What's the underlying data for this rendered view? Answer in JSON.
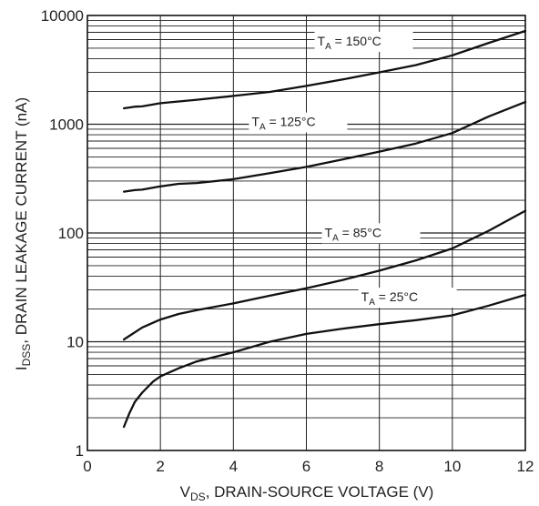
{
  "chart_data": {
    "type": "line",
    "xlabel": {
      "main": "V",
      "sub": "DS",
      "rest": ", DRAIN-SOURCE VOLTAGE (V)"
    },
    "ylabel": {
      "main": "I",
      "sub": "DSS",
      "rest": ", DRAIN LEAKAGE CURRENT (nA)"
    },
    "xlim": [
      0,
      12
    ],
    "ylim": [
      1,
      10000
    ],
    "yscale": "log",
    "grid": true,
    "x_ticks": [
      0,
      2,
      4,
      6,
      8,
      10,
      12
    ],
    "x_tick_labels": [
      "0",
      "2",
      "4",
      "6",
      "8",
      "10",
      "12"
    ],
    "y_ticks": [
      1,
      10,
      100,
      1000,
      10000
    ],
    "y_tick_labels": [
      "1",
      "10",
      "100",
      "1000",
      "10000"
    ],
    "series": [
      {
        "name": {
          "main": "T",
          "sub": "A",
          "rest": " = 150°C"
        },
        "x": [
          1.0,
          1.3,
          1.5,
          2.0,
          2.5,
          3.0,
          4.0,
          5.0,
          6.0,
          7.0,
          8.0,
          9.0,
          10.0,
          11.0,
          12.0
        ],
        "y": [
          1400,
          1450,
          1460,
          1560,
          1620,
          1680,
          1820,
          1980,
          2250,
          2580,
          3000,
          3500,
          4300,
          5600,
          7200
        ]
      },
      {
        "name": {
          "main": "T",
          "sub": "A",
          "rest": " = 125°C"
        },
        "x": [
          1.0,
          1.3,
          1.5,
          2.0,
          2.5,
          3.0,
          4.0,
          5.0,
          6.0,
          7.0,
          8.0,
          9.0,
          10.0,
          11.0,
          12.0
        ],
        "y": [
          240,
          248,
          250,
          268,
          283,
          288,
          312,
          355,
          405,
          475,
          560,
          665,
          830,
          1180,
          1600
        ]
      },
      {
        "name": {
          "main": "T",
          "sub": "A",
          "rest": " = 85°C"
        },
        "x": [
          1.0,
          1.5,
          2.0,
          2.5,
          3.0,
          4.0,
          5.0,
          6.0,
          7.0,
          8.0,
          9.0,
          10.0,
          11.0,
          12.0
        ],
        "y": [
          10.5,
          13.5,
          16.0,
          18.0,
          19.5,
          22.5,
          26.5,
          31.0,
          37.0,
          45.0,
          56.0,
          72.0,
          105.0,
          160.0
        ]
      },
      {
        "name": {
          "main": "T",
          "sub": "A",
          "rest": " = 25°C"
        },
        "x": [
          1.0,
          1.15,
          1.3,
          1.5,
          1.8,
          2.0,
          2.5,
          3.0,
          4.0,
          5.0,
          6.0,
          7.0,
          8.0,
          9.0,
          10.0,
          11.0,
          12.0
        ],
        "y": [
          1.65,
          2.2,
          2.8,
          3.4,
          4.3,
          4.8,
          5.7,
          6.6,
          8.0,
          10.0,
          11.8,
          13.2,
          14.5,
          15.8,
          17.5,
          21.5,
          27.0
        ]
      }
    ]
  }
}
